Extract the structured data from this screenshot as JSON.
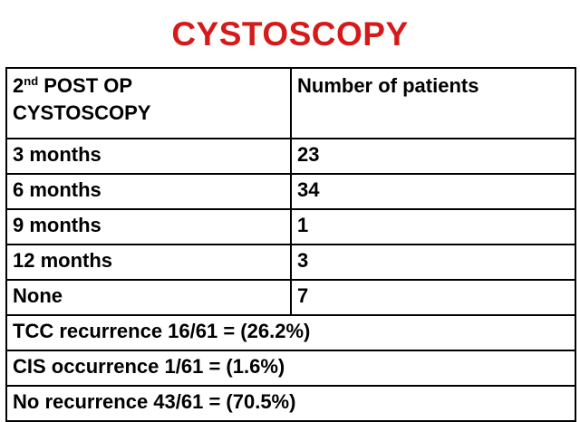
{
  "title": "CYSTOSCOPY",
  "colors": {
    "title": "#d61a1a",
    "text": "#000000",
    "border": "#000000",
    "background": "#ffffff"
  },
  "table": {
    "header": {
      "col1_prefix": "2",
      "col1_superscript": "nd",
      "col1_line1_rest": " POST OP",
      "col1_line2": "CYSTOSCOPY",
      "col2": "Number of patients"
    },
    "rows": [
      {
        "label": "3 months",
        "value": "23"
      },
      {
        "label": "6 months",
        "value": "34"
      },
      {
        "label": "9 months",
        "value": "1"
      },
      {
        "label": "12 months",
        "value": "3"
      },
      {
        "label": "None",
        "value": "7"
      }
    ],
    "summary": [
      "TCC recurrence 16/61 = (26.2%)",
      "CIS occurrence 1/61 = (1.6%)",
      "No recurrence 43/61 = (70.5%)"
    ]
  }
}
